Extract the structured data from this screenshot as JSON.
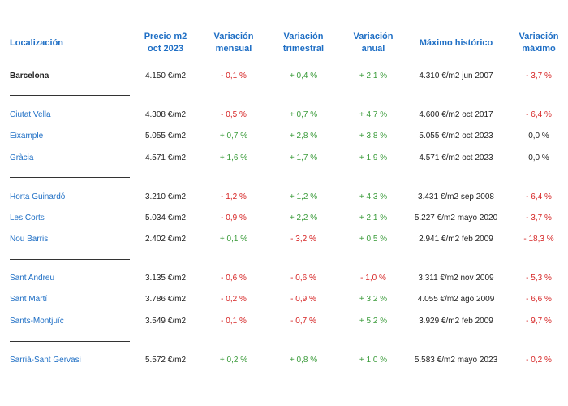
{
  "headers": {
    "localizacion": [
      "Localización"
    ],
    "precio": [
      "Precio m2",
      "oct 2023"
    ],
    "mensual": [
      "Variación",
      "mensual"
    ],
    "trimestral": [
      "Variación",
      "trimestral"
    ],
    "anual": [
      "Variación",
      "anual"
    ],
    "maximo": [
      "Máximo histórico"
    ],
    "variacion_maximo": [
      "Variación",
      "máximo"
    ]
  },
  "rows": [
    {
      "name": "Barcelona",
      "price": "4.150 €/m2",
      "mensual": "- 0,1 %",
      "trimestral": "+ 0,4 %",
      "anual": "+ 2,1 %",
      "maximo": "4.310 €/m2 jun 2007",
      "var_max": "- 3,7 %"
    },
    {
      "name": "Ciutat Vella",
      "price": "4.308 €/m2",
      "mensual": "- 0,5 %",
      "trimestral": "+ 0,7 %",
      "anual": "+ 4,7 %",
      "maximo": "4.600 €/m2 oct 2017",
      "var_max": "- 6,4 %"
    },
    {
      "name": "Eixample",
      "price": "5.055 €/m2",
      "mensual": "+ 0,7 %",
      "trimestral": "+ 2,8 %",
      "anual": "+ 3,8 %",
      "maximo": "5.055 €/m2 oct 2023",
      "var_max": "0,0 %"
    },
    {
      "name": "Gràcia",
      "price": "4.571 €/m2",
      "mensual": "+ 1,6 %",
      "trimestral": "+ 1,7 %",
      "anual": "+ 1,9 %",
      "maximo": "4.571 €/m2 oct 2023",
      "var_max": "0,0 %"
    },
    {
      "name": "Horta Guinardó",
      "price": "3.210 €/m2",
      "mensual": "- 1,2 %",
      "trimestral": "+ 1,2 %",
      "anual": "+ 4,3 %",
      "maximo": "3.431 €/m2 sep 2008",
      "var_max": "- 6,4 %"
    },
    {
      "name": "Les Corts",
      "price": "5.034 €/m2",
      "mensual": "- 0,9 %",
      "trimestral": "+ 2,2 %",
      "anual": "+ 2,1 %",
      "maximo": "5.227 €/m2 mayo 2020",
      "var_max": "- 3,7 %"
    },
    {
      "name": "Nou Barris",
      "price": "2.402 €/m2",
      "mensual": "+ 0,1 %",
      "trimestral": "- 3,2 %",
      "anual": "+ 0,5 %",
      "maximo": "2.941 €/m2 feb 2009",
      "var_max": "- 18,3 %"
    },
    {
      "name": "Sant Andreu",
      "price": "3.135 €/m2",
      "mensual": "- 0,6 %",
      "trimestral": "- 0,6 %",
      "anual": "- 1,0 %",
      "maximo": "3.311 €/m2 nov 2009",
      "var_max": "- 5,3 %"
    },
    {
      "name": "Sant Martí",
      "price": "3.786 €/m2",
      "mensual": "- 0,2 %",
      "trimestral": "- 0,9 %",
      "anual": "+ 3,2 %",
      "maximo": "4.055 €/m2 ago 2009",
      "var_max": "- 6,6 %"
    },
    {
      "name": "Sants-Montjuïc",
      "price": "3.549 €/m2",
      "mensual": "- 0,1 %",
      "trimestral": "- 0,7 %",
      "anual": "+ 5,2 %",
      "maximo": "3.929 €/m2 feb 2009",
      "var_max": "- 9,7 %"
    },
    {
      "name": "Sarrià-Sant Gervasi",
      "price": "5.572 €/m2",
      "mensual": "+ 0,2 %",
      "trimestral": "+ 0,8 %",
      "anual": "+ 1,0 %",
      "maximo": "5.583 €/m2 mayo 2023",
      "var_max": "- 0,2 %"
    }
  ],
  "colors": {
    "header": "#1f6fc5",
    "district": "#1f6fc5",
    "positive": "#3a9b3a",
    "negative": "#d62424",
    "neutral": "#222222"
  }
}
